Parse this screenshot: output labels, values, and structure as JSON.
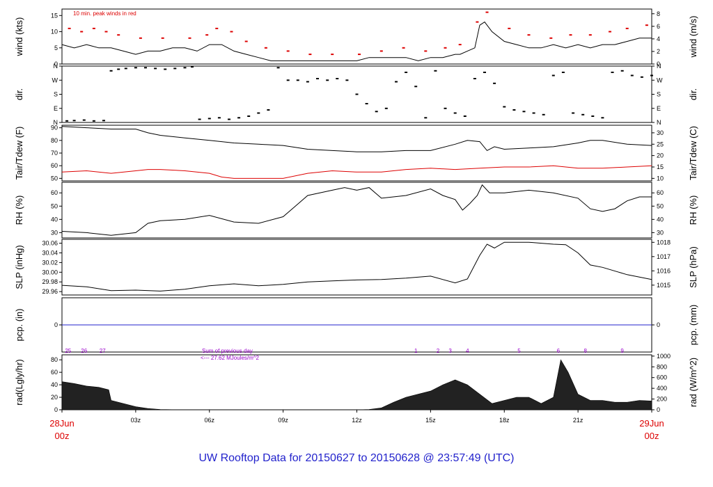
{
  "footer": {
    "prefix": "UW Rooftop Data for",
    "start": "20150627",
    "sep": "to",
    "end": "20150628 @ 23:57:49",
    "tz": "(UTC)"
  },
  "colors": {
    "red": "#dd0000",
    "blue": "#2222cc",
    "purple": "#9900cc",
    "black": "#000000"
  },
  "chart_data": {
    "type": "line",
    "x_axis": {
      "range_hours": [
        0,
        24
      ],
      "ticks": [
        {
          "hour": 0,
          "label": "28Jun",
          "sub": "00z",
          "highlight": true
        },
        {
          "hour": 3,
          "label": "03z"
        },
        {
          "hour": 6,
          "label": "06z"
        },
        {
          "hour": 9,
          "label": "09z"
        },
        {
          "hour": 12,
          "label": "12z"
        },
        {
          "hour": 15,
          "label": "15z"
        },
        {
          "hour": 18,
          "label": "18z"
        },
        {
          "hour": 21,
          "label": "21z"
        },
        {
          "hour": 24,
          "label": "29Jun",
          "sub": "00z",
          "highlight": true
        }
      ]
    },
    "panels": [
      {
        "id": "wind",
        "ylabel_left": "wind (kts)",
        "ylabel_right": "wind (m/s)",
        "ylim": [
          0,
          17
        ],
        "ticks_left": [
          0,
          5,
          10,
          15
        ],
        "ylim_right": [
          0,
          8.75
        ],
        "ticks_right": [
          0,
          2,
          4,
          6,
          8
        ],
        "annotation": "10 min. peak winds in red",
        "series": [
          {
            "kind": "line",
            "color": "#000000",
            "x": [
              0,
              0.5,
              1,
              1.5,
              2,
              2.5,
              3,
              3.5,
              4,
              4.5,
              5,
              5.5,
              6,
              6.5,
              7,
              7.5,
              8,
              8.5,
              9,
              9.5,
              10,
              10.5,
              11,
              11.5,
              12,
              12.5,
              13,
              13.5,
              14,
              14.5,
              15,
              15.5,
              16,
              16.2,
              16.5,
              16.8,
              17,
              17.2,
              17.5,
              18,
              18.5,
              19,
              19.5,
              20,
              20.5,
              21,
              21.5,
              22,
              22.5,
              23,
              23.5,
              24
            ],
            "y": [
              6,
              5,
              6,
              5,
              5,
              4,
              3,
              4,
              4,
              5,
              5,
              4,
              6,
              6,
              4,
              3,
              2,
              1,
              1,
              1,
              1,
              1,
              1,
              1,
              1,
              2,
              2,
              2,
              2,
              1,
              2,
              2,
              3,
              3,
              4,
              5,
              12,
              13,
              10,
              7,
              6,
              5,
              5,
              6,
              5,
              6,
              5,
              6,
              6,
              7,
              8,
              8
            ]
          },
          {
            "kind": "peaks",
            "color": "#dd0000",
            "x": [
              0.3,
              0.8,
              1.3,
              1.8,
              2.3,
              3.2,
              4.1,
              5.2,
              5.9,
              6.3,
              6.9,
              7.5,
              8.3,
              9.2,
              10.1,
              11,
              12.1,
              13,
              13.9,
              14.8,
              15.6,
              16.2,
              16.9,
              17.3,
              18.2,
              19,
              19.9,
              20.7,
              21.5,
              22.3,
              23,
              23.8
            ],
            "y": [
              11,
              10,
              11,
              10,
              9,
              8,
              8,
              8,
              9,
              11,
              10,
              7,
              5,
              4,
              3,
              3,
              3,
              4,
              5,
              4,
              5,
              6,
              13,
              16,
              11,
              9,
              8,
              9,
              9,
              10,
              11,
              12
            ]
          }
        ]
      },
      {
        "id": "dir",
        "ylabel_left": "dir.",
        "ylabel_right": "dir.",
        "ylim": [
          0,
          360
        ],
        "tick_values": [
          0,
          90,
          180,
          270,
          360
        ],
        "tick_labels": [
          "N",
          "E",
          "S",
          "W",
          "N"
        ],
        "series": [
          {
            "kind": "points",
            "color": "#000000",
            "x": [
              0.2,
              0.5,
              0.9,
              1.3,
              1.7,
              2.0,
              2.3,
              2.6,
              3.0,
              3.4,
              3.8,
              4.2,
              4.6,
              5.0,
              5.3,
              5.6,
              6.0,
              6.4,
              6.8,
              7.2,
              7.6,
              8.0,
              8.4,
              8.8,
              9.2,
              9.6,
              10.0,
              10.4,
              10.8,
              11.2,
              11.6,
              12.0,
              12.4,
              12.8,
              13.2,
              13.6,
              14.0,
              14.4,
              14.8,
              15.2,
              15.6,
              16.0,
              16.4,
              16.8,
              17.2,
              17.6,
              18.0,
              18.4,
              18.8,
              19.2,
              19.6,
              20.0,
              20.4,
              20.8,
              21.2,
              21.6,
              22.0,
              22.4,
              22.8,
              23.2,
              23.6,
              24.0
            ],
            "y": [
              10,
              12,
              15,
              10,
              12,
              330,
              340,
              345,
              350,
              350,
              345,
              340,
              345,
              350,
              355,
              20,
              25,
              30,
              20,
              30,
              40,
              60,
              80,
              350,
              270,
              270,
              260,
              280,
              270,
              280,
              270,
              180,
              120,
              70,
              90,
              260,
              320,
              230,
              30,
              330,
              90,
              60,
              40,
              280,
              320,
              250,
              100,
              80,
              70,
              60,
              50,
              300,
              320,
              60,
              50,
              40,
              30,
              320,
              330,
              300,
              290,
              300
            ]
          }
        ]
      },
      {
        "id": "temp",
        "ylabel_left": "Tair/Tdew (F)",
        "ylabel_right": "Tair/Tdew (C)",
        "ylim": [
          48,
          92
        ],
        "ticks_left": [
          50,
          60,
          70,
          80,
          90
        ],
        "ylim_right": [
          8.89,
          33.33
        ],
        "ticks_right": [
          10,
          15,
          20,
          25,
          30
        ],
        "series": [
          {
            "kind": "line",
            "color": "#000000",
            "name": "Tair",
            "x": [
              0,
              1,
              2,
              3,
              3.5,
              4,
              5,
              6,
              7,
              8,
              9,
              10,
              11,
              12,
              13,
              14,
              15,
              16,
              16.5,
              17,
              17.3,
              17.6,
              18,
              19,
              20,
              21,
              21.5,
              22,
              23,
              24
            ],
            "y": [
              91,
              90,
              89,
              89,
              86,
              84,
              82,
              80,
              78,
              77,
              76,
              73,
              72,
              71,
              71,
              72,
              72,
              77,
              80,
              79,
              72,
              75,
              73,
              74,
              75,
              78,
              80,
              80,
              77,
              76
            ]
          },
          {
            "kind": "line",
            "color": "#dd0000",
            "name": "Tdew",
            "x": [
              0,
              1,
              2,
              3,
              3.5,
              4,
              5,
              6,
              6.5,
              7,
              8,
              9,
              10,
              11,
              12,
              13,
              14,
              15,
              16,
              17,
              18,
              19,
              20,
              21,
              22,
              23,
              24
            ],
            "y": [
              55,
              56,
              54,
              56,
              57,
              57,
              56,
              54,
              51,
              50,
              50,
              50,
              54,
              56,
              55,
              55,
              57,
              58,
              57,
              58,
              59,
              59,
              60,
              58,
              58,
              59,
              60
            ]
          }
        ]
      },
      {
        "id": "rh",
        "ylabel_left": "RH (%)",
        "ylabel_right": "RH (%)",
        "ylim": [
          26,
          68
        ],
        "ticks_left": [
          30,
          40,
          50,
          60
        ],
        "ticks_right": [
          30,
          40,
          50,
          60
        ],
        "series": [
          {
            "kind": "line",
            "color": "#000000",
            "x": [
              0,
              1,
              2,
              3,
              3.5,
              4,
              5,
              6,
              7,
              8,
              9,
              9.5,
              10,
              11,
              11.5,
              12,
              12.5,
              13,
              14,
              15,
              15.5,
              16,
              16.3,
              16.6,
              16.9,
              17.1,
              17.4,
              18,
              19,
              20,
              21,
              21.5,
              22,
              22.5,
              23,
              23.5,
              24
            ],
            "y": [
              31,
              30,
              28,
              30,
              37,
              39,
              40,
              43,
              38,
              37,
              42,
              50,
              58,
              62,
              64,
              62,
              64,
              56,
              58,
              63,
              58,
              55,
              47,
              52,
              58,
              66,
              60,
              60,
              62,
              60,
              56,
              48,
              46,
              48,
              54,
              57,
              57
            ]
          }
        ]
      },
      {
        "id": "slp",
        "ylabel_left": "SLP (inHg)",
        "ylabel_right": "SLP (hPa)",
        "ylim": [
          29.953,
          30.068
        ],
        "ticks_left": [
          29.96,
          29.98,
          30.0,
          30.02,
          30.04,
          30.06
        ],
        "tick_labels_left": [
          "29.96",
          "29.98",
          "30.00",
          "30.02",
          "30.04",
          "30.06"
        ],
        "ylim_right": [
          1014.31,
          1018.21
        ],
        "ticks_right": [
          1015,
          1016,
          1017,
          1018
        ],
        "series": [
          {
            "kind": "line",
            "color": "#000000",
            "x": [
              0,
              1,
              2,
              3,
              4,
              5,
              6,
              7,
              8,
              9,
              10,
              11,
              12,
              13,
              14,
              15,
              16,
              16.5,
              17,
              17.3,
              17.6,
              18,
              19,
              20,
              20.5,
              21,
              21.5,
              22,
              23,
              24
            ],
            "y": [
              29.973,
              29.97,
              29.962,
              29.963,
              29.961,
              29.965,
              29.972,
              29.976,
              29.972,
              29.975,
              29.98,
              29.982,
              29.984,
              29.985,
              29.988,
              29.992,
              29.978,
              29.986,
              30.035,
              30.058,
              30.05,
              30.062,
              30.062,
              30.058,
              30.057,
              30.04,
              30.015,
              30.01,
              29.995,
              29.985
            ]
          }
        ]
      },
      {
        "id": "pcp",
        "ylabel_left": "pcp. (in)",
        "ylabel_right": "pcp. (mm)",
        "ylim": [
          -0.5,
          0.5
        ],
        "ticks_left": [
          0
        ],
        "ticks_right": [
          0
        ],
        "series": [
          {
            "kind": "line",
            "color": "#2222cc",
            "x": [
              0,
              24
            ],
            "y": [
              0,
              0
            ]
          }
        ]
      },
      {
        "id": "rad",
        "ylabel_left": "rad(Lgly/hr)",
        "ylabel_right": "rad (W/m^2)",
        "ylim": [
          0,
          88
        ],
        "ticks_left": [
          0,
          20,
          40,
          60,
          80
        ],
        "ylim_right": [
          0,
          1024
        ],
        "ticks_right": [
          0,
          200,
          400,
          600,
          800,
          1000
        ],
        "annotation_line1": "Sum of previous day",
        "annotation_line2": "<--- 27.62 MJoules/m^2",
        "day_markers": [
          {
            "hour": 0.25,
            "label": "25"
          },
          {
            "hour": 0.9,
            "label": "26"
          },
          {
            "hour": 1.65,
            "label": "27"
          },
          {
            "hour": 14.4,
            "label": "1"
          },
          {
            "hour": 15.3,
            "label": "2"
          },
          {
            "hour": 15.8,
            "label": "3"
          },
          {
            "hour": 16.5,
            "label": "4"
          },
          {
            "hour": 18.6,
            "label": "5"
          },
          {
            "hour": 20.2,
            "label": "6"
          },
          {
            "hour": 21.3,
            "label": "8"
          },
          {
            "hour": 22.8,
            "label": "9"
          }
        ],
        "series": [
          {
            "kind": "area",
            "color": "#000000",
            "x": [
              0,
              0.5,
              1,
              1.5,
              1.9,
              2.0,
              2.5,
              3,
              3.5,
              4,
              5,
              6,
              7,
              8,
              9,
              10,
              11,
              12,
              12.5,
              13,
              13.5,
              14,
              14.5,
              15,
              15.5,
              16,
              16.5,
              17,
              17.5,
              18,
              18.5,
              19,
              19.5,
              20,
              20.3,
              20.6,
              21,
              21.5,
              22,
              22.5,
              23,
              23.5,
              24
            ],
            "y": [
              45,
              42,
              38,
              36,
              32,
              15,
              10,
              5,
              2,
              0.5,
              0,
              0,
              0,
              0,
              0,
              0,
              0,
              0,
              0.5,
              3,
              12,
              20,
              25,
              30,
              40,
              48,
              40,
              25,
              10,
              15,
              20,
              20,
              10,
              20,
              80,
              60,
              25,
              15,
              15,
              12,
              12,
              15,
              14
            ]
          }
        ]
      }
    ]
  }
}
